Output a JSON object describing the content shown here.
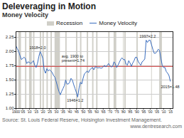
{
  "chart_data": {
    "type": "line",
    "title": "Deleveraging in Motion",
    "subtitle": "Money Velocity",
    "caption": "Source: St. Louis Federal Reserve, Hoisington Investment Management.",
    "watermark": "www.dentresearch.com",
    "x": [
      1900,
      1901,
      1902,
      1903,
      1904,
      1905,
      1906,
      1907,
      1908,
      1909,
      1910,
      1911,
      1912,
      1913,
      1914,
      1915,
      1916,
      1917,
      1918,
      1919,
      1920,
      1921,
      1922,
      1923,
      1924,
      1925,
      1926,
      1927,
      1928,
      1929,
      1930,
      1931,
      1932,
      1933,
      1934,
      1935,
      1936,
      1937,
      1938,
      1939,
      1940,
      1941,
      1942,
      1943,
      1944,
      1945,
      1946,
      1947,
      1948,
      1949,
      1950,
      1951,
      1952,
      1953,
      1954,
      1955,
      1956,
      1957,
      1958,
      1959,
      1960,
      1961,
      1962,
      1963,
      1964,
      1965,
      1966,
      1967,
      1968,
      1969,
      1970,
      1971,
      1972,
      1973,
      1974,
      1975,
      1976,
      1977,
      1978,
      1979,
      1980,
      1981,
      1982,
      1983,
      1984,
      1985,
      1986,
      1987,
      1988,
      1989,
      1990,
      1991,
      1992,
      1993,
      1994,
      1995,
      1996,
      1997,
      1998,
      1999,
      2000,
      2001,
      2002,
      2003,
      2004,
      2005,
      2006,
      2007,
      2008,
      2009,
      2010,
      2011,
      2012,
      2013,
      2014,
      2015
    ],
    "series": [
      {
        "name": "Money Velocity",
        "color": "#3a6dbf",
        "values": [
          2.1,
          2.05,
          2.0,
          1.93,
          1.86,
          1.88,
          1.9,
          1.88,
          1.79,
          1.82,
          1.81,
          1.79,
          1.81,
          1.84,
          1.76,
          1.72,
          1.79,
          1.91,
          2.0,
          1.95,
          1.88,
          1.68,
          1.62,
          1.7,
          1.66,
          1.68,
          1.66,
          1.63,
          1.58,
          1.55,
          1.47,
          1.38,
          1.3,
          1.24,
          1.3,
          1.35,
          1.4,
          1.5,
          1.43,
          1.43,
          1.46,
          1.53,
          1.5,
          1.42,
          1.35,
          1.28,
          1.2,
          1.36,
          1.46,
          1.43,
          1.53,
          1.61,
          1.63,
          1.66,
          1.63,
          1.68,
          1.7,
          1.72,
          1.68,
          1.73,
          1.73,
          1.71,
          1.72,
          1.71,
          1.71,
          1.73,
          1.76,
          1.73,
          1.76,
          1.79,
          1.75,
          1.73,
          1.74,
          1.82,
          1.79,
          1.72,
          1.76,
          1.81,
          1.86,
          1.89,
          1.86,
          1.86,
          1.78,
          1.76,
          1.84,
          1.8,
          1.74,
          1.8,
          1.84,
          1.9,
          1.9,
          1.83,
          1.79,
          1.76,
          1.82,
          1.84,
          1.87,
          2.2,
          2.16,
          2.2,
          2.2,
          2.12,
          2.04,
          1.97,
          1.97,
          2.0,
          2.04,
          2.02,
          1.88,
          1.76,
          1.72,
          1.72,
          1.65,
          1.62,
          1.58,
          1.48
        ]
      }
    ],
    "bands": {
      "name": "Recession",
      "color": "#d0cfc8",
      "ranges": [
        [
          1902,
          1904
        ],
        [
          1907,
          1908
        ],
        [
          1910,
          1912
        ],
        [
          1913,
          1914
        ],
        [
          1918,
          1919
        ],
        [
          1920,
          1921
        ],
        [
          1923,
          1924
        ],
        [
          1926,
          1927
        ],
        [
          1929,
          1933
        ],
        [
          1937,
          1938
        ],
        [
          1945,
          1946
        ],
        [
          1948,
          1949
        ],
        [
          1953,
          1954
        ],
        [
          1957,
          1958
        ],
        [
          1960,
          1961
        ],
        [
          1969,
          1970
        ],
        [
          1973,
          1975
        ],
        [
          1980,
          1980.5
        ],
        [
          1981,
          1982
        ],
        [
          1990,
          1991
        ],
        [
          2001,
          2001.5
        ],
        [
          2007,
          2009
        ]
      ]
    },
    "avg_line": {
      "value": 1.74,
      "color": "#cc3333"
    },
    "annotations": [
      {
        "text": "1918=2.0",
        "x": 1910,
        "y": 2.04
      },
      {
        "text": "1946=1.2",
        "x": 1938,
        "y": 1.12
      },
      {
        "text": "1997=2.2",
        "x": 1992,
        "y": 2.24
      },
      {
        "text": "2015=1.48",
        "x": 2008,
        "y": 1.36
      },
      {
        "text": "avg. 1900 to\npresent=1.74",
        "x": 1934,
        "y": 1.82
      }
    ],
    "xlim": [
      1900,
      2017
    ],
    "ylim": [
      1.0,
      2.35
    ],
    "xticks": [
      1900,
      {
        "value": 1905,
        "label": "'05"
      },
      {
        "value": 1910,
        "label": "'10"
      },
      {
        "value": 1915,
        "label": "'15"
      },
      {
        "value": 1920,
        "label": "'20"
      },
      {
        "value": 1925,
        "label": "'25"
      },
      {
        "value": 1930,
        "label": "'30"
      },
      {
        "value": 1935,
        "label": "'35"
      },
      {
        "value": 1940,
        "label": "'40"
      },
      {
        "value": 1945,
        "label": "'45"
      },
      {
        "value": 1950,
        "label": "'50"
      },
      {
        "value": 1955,
        "label": "'55"
      },
      {
        "value": 1960,
        "label": "'60"
      },
      {
        "value": 1965,
        "label": "'65"
      },
      {
        "value": 1970,
        "label": "'70"
      },
      {
        "value": 1975,
        "label": "'75"
      },
      {
        "value": 1980,
        "label": "'80"
      },
      {
        "value": 1985,
        "label": "'85"
      },
      {
        "value": 1990,
        "label": "'90"
      },
      {
        "value": 1995,
        "label": "'95"
      },
      {
        "value": 2000,
        "label": "'00"
      },
      {
        "value": 2005,
        "label": "'05"
      },
      {
        "value": 2010,
        "label": "'10"
      },
      {
        "value": 2015,
        "label": "'15"
      }
    ],
    "yticks": [
      {
        "value": 1.0,
        "label": "1.00"
      },
      1.25,
      {
        "value": 1.5,
        "label": "1.50"
      },
      1.75,
      {
        "value": 2.0,
        "label": "2.00"
      },
      2.25
    ],
    "grid": true,
    "legend": "top"
  }
}
